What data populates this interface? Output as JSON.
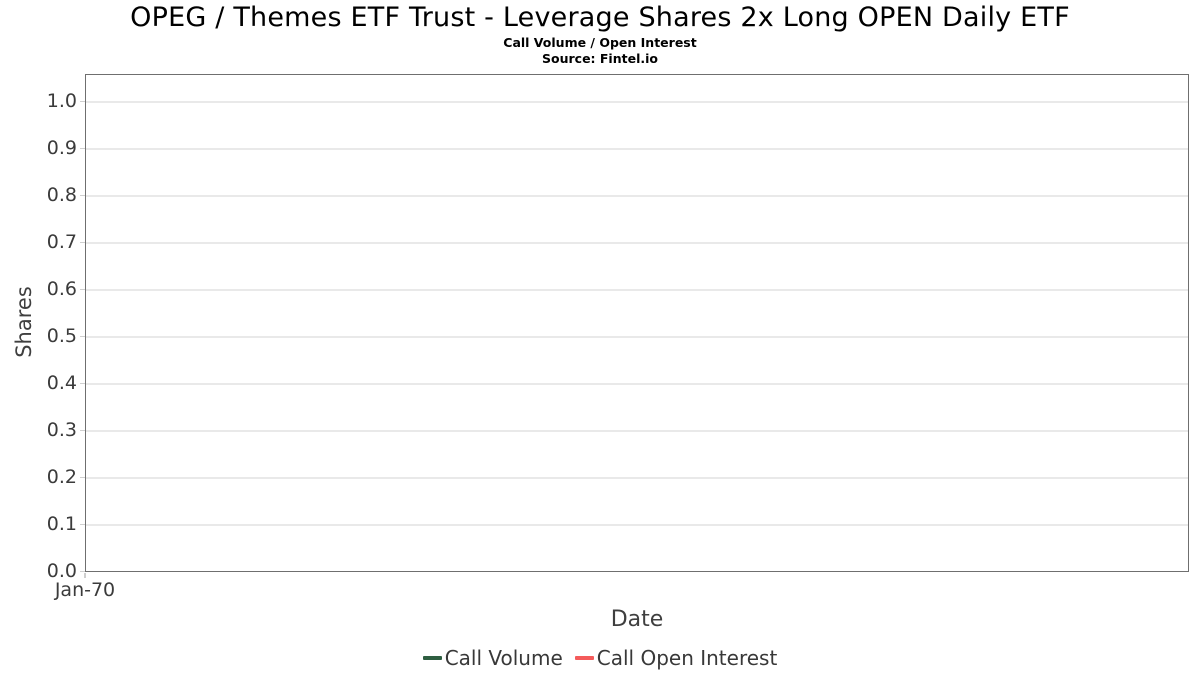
{
  "chart_data": {
    "type": "line",
    "title": "OPEG / Themes ETF Trust - Leverage Shares 2x Long OPEN Daily ETF",
    "subtitle": "Call Volume / Open Interest",
    "source": "Source: Fintel.io",
    "xlabel": "Date",
    "ylabel": "Shares",
    "x_tick_labels": [
      "Jan-70"
    ],
    "y_tick_labels": [
      "0.0",
      "0.1",
      "0.2",
      "0.3",
      "0.4",
      "0.5",
      "0.6",
      "0.7",
      "0.8",
      "0.9",
      "1.0"
    ],
    "y_tick_values": [
      0.0,
      0.1,
      0.2,
      0.3,
      0.4,
      0.5,
      0.6,
      0.7,
      0.8,
      0.9,
      1.0
    ],
    "ylim": [
      0.0,
      1.06
    ],
    "grid": true,
    "legend_position": "bottom",
    "series": [
      {
        "name": "Call Volume",
        "color": "#2e5e41",
        "x": [],
        "values": []
      },
      {
        "name": "Call Open Interest",
        "color": "#f45b5b",
        "x": [],
        "values": []
      }
    ]
  },
  "colors": {
    "grid": "#e9e9e9",
    "axis_border": "#6f6f6f",
    "tick_mark": "#cfcfcf",
    "tick_text": "#3b3b3b",
    "axis_label_text": "#3f3f3f",
    "legend_text": "#383838",
    "title_text": "#000000",
    "background": "#ffffff"
  }
}
